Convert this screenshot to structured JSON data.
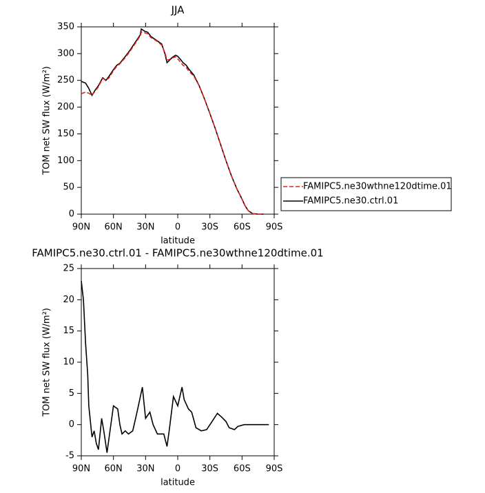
{
  "chart_data": [
    {
      "type": "line",
      "title": "JJA",
      "xlabel": "latitude",
      "ylabel": "TOM net SW flux (W/m²)",
      "x": [
        90,
        86,
        83,
        80,
        77,
        74,
        70,
        67,
        64,
        60,
        57,
        54,
        50,
        45,
        40,
        35,
        34,
        31,
        28,
        25,
        20,
        15,
        12,
        10,
        8,
        5,
        2,
        0,
        -3,
        -5,
        -8,
        -10,
        -15,
        -20,
        -25,
        -30,
        -35,
        -40,
        -45,
        -50,
        -55,
        -60,
        -63,
        -66,
        -70,
        -75,
        -80
      ],
      "series": [
        {
          "name": "FAMIPC5.ne30wthne120dtime.01",
          "color": "#e0201b",
          "dash": true,
          "values": [
            225,
            228,
            226,
            222,
            230,
            238,
            254,
            250,
            255,
            268,
            276,
            281,
            290,
            303,
            318,
            333,
            340,
            339,
            337,
            330,
            324,
            316,
            302,
            288,
            289,
            292,
            294,
            290,
            283,
            278,
            274,
            268,
            258,
            240,
            215,
            188,
            160,
            130,
            100,
            72,
            48,
            28,
            15,
            6,
            1,
            0,
            0
          ]
        },
        {
          "name": "FAMIPC5.ne30.ctrl.01",
          "color": "#000000",
          "dash": false,
          "values": [
            248,
            245,
            235,
            222,
            232,
            240,
            255,
            250,
            258,
            270,
            278,
            282,
            292,
            305,
            320,
            335,
            346,
            342,
            340,
            332,
            325,
            318,
            300,
            283,
            287,
            293,
            297,
            295,
            288,
            283,
            278,
            272,
            260,
            240,
            215,
            188,
            160,
            130,
            100,
            72,
            48,
            28,
            15,
            6,
            1,
            0,
            0
          ]
        }
      ],
      "xlim": [
        90,
        -90
      ],
      "xticks": [
        {
          "value": 90,
          "label": "90N"
        },
        {
          "value": 60,
          "label": "60N"
        },
        {
          "value": 30,
          "label": "30N"
        },
        0,
        {
          "value": -30,
          "label": "30S"
        },
        {
          "value": -60,
          "label": "60S"
        },
        {
          "value": -90,
          "label": "90S"
        }
      ],
      "ylim": [
        0,
        350
      ],
      "yticks": [
        0,
        50,
        100,
        150,
        200,
        250,
        300,
        350
      ],
      "legend": "right"
    },
    {
      "type": "line",
      "title": "FAMIPC5.ne30.ctrl.01 - FAMIPC5.ne30wthne120dtime.01",
      "xlabel": "latitude",
      "ylabel": "TOM net SW flux (W/m²)",
      "x": [
        90,
        88,
        86,
        84,
        83,
        80,
        78,
        76,
        74,
        71,
        69,
        66,
        64,
        60,
        56,
        54,
        52,
        49,
        46,
        42,
        38,
        33,
        30,
        26,
        23,
        19,
        13,
        10,
        8,
        4,
        0,
        -4,
        -6,
        -10,
        -13,
        -17,
        -22,
        -27,
        -32,
        -37,
        -41,
        -45,
        -48,
        -53,
        -56,
        -62,
        -70,
        -85
      ],
      "values": [
        23,
        20,
        13,
        8,
        3,
        -2,
        -1,
        -3,
        -4,
        1,
        -1,
        -4.5,
        -2,
        3,
        2.5,
        0,
        -1.5,
        -1,
        -1.5,
        -1,
        2,
        6,
        1,
        2,
        0,
        -1.5,
        -1.5,
        -3.5,
        -1,
        4.5,
        3,
        6,
        4,
        2.5,
        2,
        -0.5,
        -1,
        -0.8,
        0.5,
        1.8,
        1.2,
        0.5,
        -0.5,
        -0.8,
        -0.3,
        0,
        0,
        0
      ],
      "color": "#000000",
      "xlim": [
        90,
        -90
      ],
      "xticks": [
        {
          "value": 90,
          "label": "90N"
        },
        {
          "value": 60,
          "label": "60N"
        },
        {
          "value": 30,
          "label": "30N"
        },
        0,
        {
          "value": -30,
          "label": "30S"
        },
        {
          "value": -60,
          "label": "60S"
        },
        {
          "value": -90,
          "label": "90S"
        }
      ],
      "ylim": [
        -5,
        25
      ],
      "yticks": [
        -5,
        0,
        5,
        10,
        15,
        20,
        25
      ]
    }
  ]
}
